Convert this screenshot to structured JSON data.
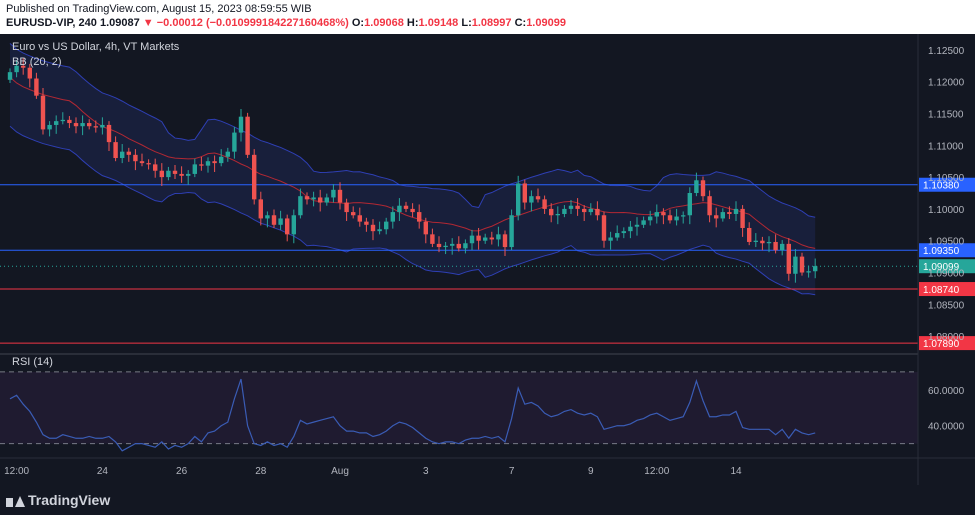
{
  "header": {
    "published": "Published on TradingView.com, August 15, 2023 08:59:55 WIB",
    "symbol": "EURUSD-VIP, 240",
    "last": "1.09087",
    "change": "▼ −0.00012 (−0.010999184227160468%)",
    "o_label": "O:",
    "o_value": "1.09068",
    "h_label": "H:",
    "h_value": "1.09148",
    "l_label": "L:",
    "l_value": "1.08997",
    "c_label": "C:",
    "c_value": "1.09099"
  },
  "legend": {
    "title": "Euro vs US Dollar, 4h, VT Markets",
    "bb": "BB (20, 2)",
    "rsi": "RSI (14)"
  },
  "footer": {
    "brand": "TradingView"
  },
  "colors": {
    "background": "#131722",
    "up": "#26a69a",
    "down": "#ef5350",
    "bb_basis": "#b22833",
    "bb_band": "#2e3fb4",
    "hline_blue": "#2962ff",
    "hline_red": "#f23645",
    "rsi_line": "#3a5cb5",
    "rsi_fill": "#2a1f3d"
  },
  "chart_data": [
    {
      "type": "candlestick",
      "title": "Euro vs US Dollar, 4h, VT Markets",
      "ylim": [
        1.0775,
        1.1275
      ],
      "price_axis_ticks": [
        "1.12500",
        "1.12000",
        "1.11500",
        "1.11000",
        "1.10500",
        "1.10000",
        "1.09500",
        "1.09000",
        "1.08500",
        "1.08000"
      ],
      "time_axis_labels": [
        "12:00",
        "24",
        "26",
        "28",
        "Aug",
        "3",
        "7",
        "9",
        "12:00",
        "14"
      ],
      "time_axis_label_bar_index": [
        1,
        14,
        26,
        38,
        50,
        63,
        76,
        88,
        98,
        110
      ],
      "horizontal_levels": [
        {
          "price": 1.1038,
          "label": "1.10380",
          "color": "blue"
        },
        {
          "price": 1.0935,
          "label": "1.09350",
          "color": "blue"
        },
        {
          "price": 1.0874,
          "label": "1.08740",
          "color": "red"
        },
        {
          "price": 1.0789,
          "label": "1.07890",
          "color": "red"
        }
      ],
      "last_price": {
        "price": 1.09099,
        "label": "1.09099"
      },
      "close": [
        1.1215,
        1.1225,
        1.1222,
        1.1205,
        1.1178,
        1.1125,
        1.1132,
        1.1138,
        1.114,
        1.1135,
        1.113,
        1.1135,
        1.113,
        1.1128,
        1.1132,
        1.1105,
        1.108,
        1.109,
        1.1085,
        1.1075,
        1.1072,
        1.107,
        1.106,
        1.105,
        1.106,
        1.1055,
        1.1052,
        1.1055,
        1.107,
        1.1068,
        1.1075,
        1.1072,
        1.1082,
        1.109,
        1.112,
        1.1145,
        1.1085,
        1.1015,
        1.0985,
        1.099,
        1.0975,
        1.0985,
        1.096,
        1.099,
        1.102,
        1.1015,
        1.1018,
        1.101,
        1.1018,
        1.103,
        1.101,
        1.0995,
        1.099,
        1.098,
        1.0975,
        1.0965,
        1.0968,
        1.098,
        1.0995,
        1.1005,
        1.1,
        1.0995,
        1.098,
        1.096,
        1.0945,
        1.094,
        1.0942,
        1.0945,
        1.0938,
        1.0946,
        1.0958,
        1.095,
        1.0955,
        1.0952,
        1.096,
        1.094,
        1.099,
        1.104,
        1.101,
        1.102,
        1.1015,
        1.1,
        1.099,
        1.0992,
        1.1,
        1.1005,
        1.1,
        1.0995,
        1.1,
        1.099,
        1.095,
        1.0955,
        1.0962,
        1.0965,
        1.0972,
        1.0975,
        1.0982,
        1.0988,
        1.0995,
        1.099,
        1.0982,
        1.0988,
        1.099,
        1.1025,
        1.1045,
        1.102,
        1.099,
        1.0985,
        1.0995,
        1.0992,
        1.1,
        1.097,
        1.0948,
        1.095,
        1.0946,
        1.0948,
        1.0935,
        1.0945,
        1.0898,
        1.0925,
        1.09,
        1.0902,
        1.091
      ],
      "bb_basis_range": [
        1.0955,
        1.1235
      ],
      "bb_band_width_range": [
        0.0045,
        0.013
      ]
    },
    {
      "type": "line",
      "title": "RSI (14)",
      "ylim": [
        22,
        80
      ],
      "yticks": [
        "60.0000",
        "40.0000"
      ],
      "guide_levels": [
        70,
        30
      ],
      "series": [
        {
          "values": [
            55,
            57,
            52,
            48,
            42,
            35,
            33,
            33,
            35,
            34,
            33,
            33,
            34,
            33,
            33,
            34,
            31,
            26,
            28,
            30,
            30,
            29,
            28,
            31,
            27,
            29,
            28,
            30,
            34,
            31,
            36,
            37,
            40,
            42,
            55,
            66,
            40,
            30,
            29,
            31,
            29,
            30,
            28,
            34,
            43,
            41,
            42,
            43,
            44,
            45,
            40,
            37,
            37,
            36,
            36,
            34,
            35,
            37,
            40,
            42,
            41,
            39,
            36,
            33,
            31,
            30,
            31,
            31,
            30,
            32,
            33,
            33,
            34,
            33,
            34,
            31,
            44,
            61,
            52,
            53,
            51,
            47,
            45,
            46,
            48,
            49,
            47,
            46,
            47,
            45,
            38,
            39,
            40,
            40,
            41,
            43,
            44,
            46,
            47,
            45,
            43,
            44,
            45,
            53,
            65,
            54,
            45,
            45,
            46,
            46,
            48,
            39,
            38,
            38,
            38,
            38,
            35,
            38,
            33,
            38,
            36,
            35,
            36
          ]
        }
      ]
    }
  ]
}
